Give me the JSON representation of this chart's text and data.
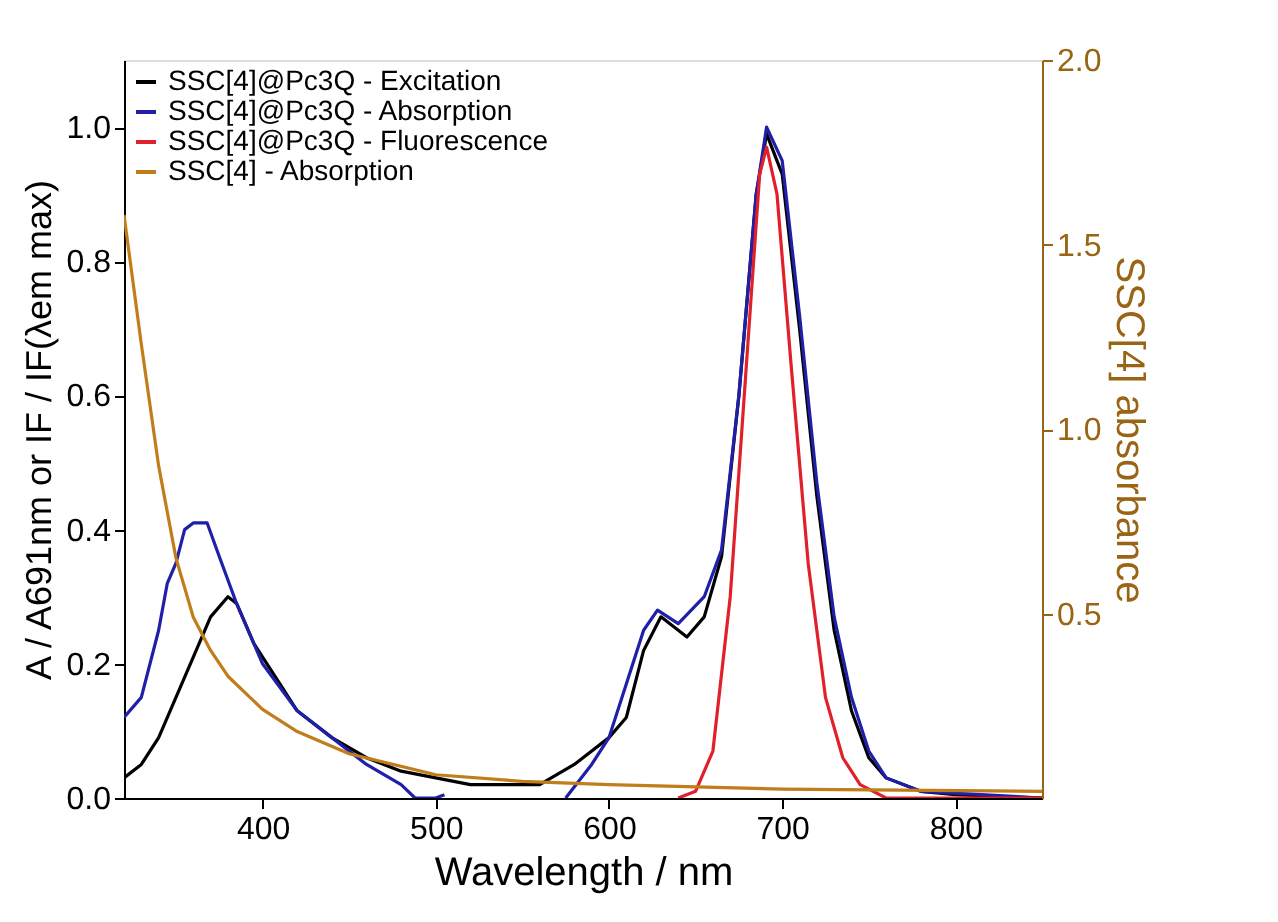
{
  "chart_data": {
    "type": "line",
    "xlabel": "Wavelength / nm",
    "ylabel": "A / A691nm or IF / IF(λem max)",
    "y2label": "SSC[4] absorbance",
    "xlim": [
      320,
      850
    ],
    "xticks": [
      400,
      500,
      600,
      700,
      800
    ],
    "ylim": [
      0,
      1.1
    ],
    "yticks": [
      {
        "value": 0,
        "label": "0.0"
      },
      {
        "value": 0.2,
        "label": "0.2"
      },
      {
        "value": 0.4,
        "label": "0.4"
      },
      {
        "value": 0.6,
        "label": "0.6"
      },
      {
        "value": 0.8,
        "label": "0.8"
      },
      {
        "value": 1,
        "label": "1.0"
      }
    ],
    "y2lim": [
      0,
      2
    ],
    "y2ticks": [
      {
        "value": 0.5,
        "label": "0.5"
      },
      {
        "value": 1,
        "label": "1.0"
      },
      {
        "value": 1.5,
        "label": "1.5"
      },
      {
        "value": 2,
        "label": "2.0"
      }
    ],
    "grid": false,
    "legend": "top left",
    "marker": "none",
    "line_style": "solid",
    "series": [
      {
        "name": "SSC[4]@Pc3Q - Excitation",
        "color": "#000000",
        "x": [
          320,
          330,
          340,
          350,
          360,
          370,
          380,
          385,
          395,
          410,
          420,
          440,
          460,
          480,
          500,
          520,
          560,
          580,
          600,
          610,
          620,
          630,
          640,
          645,
          655,
          665,
          675,
          685,
          691,
          700,
          710,
          720,
          730,
          740,
          750,
          760,
          780,
          800,
          850
        ],
        "values": [
          0.03,
          0.05,
          0.09,
          0.15,
          0.21,
          0.27,
          0.3,
          0.29,
          0.23,
          0.17,
          0.13,
          0.09,
          0.06,
          0.04,
          0.03,
          0.02,
          0.02,
          0.05,
          0.09,
          0.12,
          0.22,
          0.27,
          0.25,
          0.24,
          0.27,
          0.36,
          0.6,
          0.9,
          0.99,
          0.93,
          0.7,
          0.45,
          0.25,
          0.13,
          0.06,
          0.03,
          0.01,
          0.005,
          0.0
        ]
      },
      {
        "name": "SSC[4]@Pc3Q - Absorption",
        "color": "#1f1fa8",
        "x": [
          320,
          330,
          340,
          345,
          350,
          355,
          360,
          368,
          375,
          385,
          400,
          420,
          440,
          460,
          480,
          488,
          500,
          505,
          540,
          575,
          590,
          600,
          610,
          620,
          628,
          640,
          655,
          665,
          675,
          685,
          691,
          700,
          710,
          720,
          730,
          740,
          750,
          760,
          780,
          850
        ],
        "values": [
          0.12,
          0.15,
          0.25,
          0.32,
          0.35,
          0.4,
          0.41,
          0.41,
          0.36,
          0.29,
          0.2,
          0.13,
          0.09,
          0.05,
          0.02,
          0.0,
          0.0,
          0.005,
          null,
          0.0,
          0.05,
          0.09,
          0.17,
          0.25,
          0.28,
          0.26,
          0.3,
          0.37,
          0.6,
          0.9,
          1.0,
          0.95,
          0.72,
          0.47,
          0.27,
          0.15,
          0.07,
          0.03,
          0.01,
          0.0
        ]
      },
      {
        "name": "SSC[4]@Pc3Q - Fluorescence",
        "color": "#e0202a",
        "x": [
          640,
          650,
          660,
          670,
          680,
          687,
          691,
          697,
          705,
          715,
          725,
          735,
          745,
          760,
          850
        ],
        "values": [
          0.0,
          0.01,
          0.07,
          0.3,
          0.67,
          0.93,
          0.97,
          0.9,
          0.65,
          0.35,
          0.15,
          0.06,
          0.02,
          0.0,
          0.0
        ]
      },
      {
        "name": "SSC[4] - Absorption",
        "color": "#c07d1a",
        "axis": "y2",
        "x": [
          320,
          330,
          340,
          350,
          360,
          370,
          380,
          400,
          420,
          450,
          500,
          550,
          600,
          700,
          850
        ],
        "values": [
          1.58,
          1.23,
          0.9,
          0.65,
          0.49,
          0.4,
          0.33,
          0.24,
          0.18,
          0.12,
          0.063,
          0.045,
          0.036,
          0.024,
          0.018
        ]
      }
    ]
  }
}
